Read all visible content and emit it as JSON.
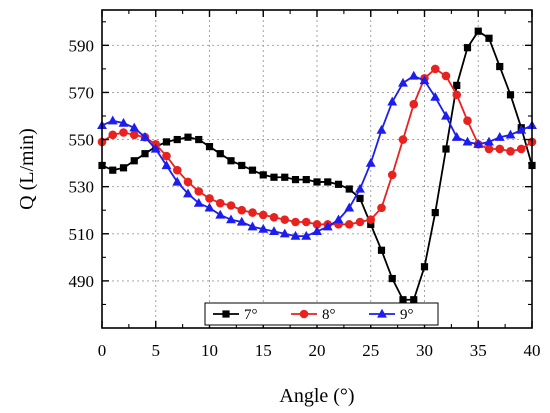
{
  "chart_data": {
    "type": "line",
    "xlabel": "Angle (°)",
    "ylabel": "Q (L/min)",
    "xlim": [
      0,
      40
    ],
    "ylim": [
      470,
      605
    ],
    "x_ticks": [
      0,
      5,
      10,
      15,
      20,
      25,
      30,
      35,
      40
    ],
    "y_ticks": [
      490,
      510,
      530,
      550,
      570,
      590
    ],
    "grid": true,
    "legend_position": "bottom-center",
    "x": [
      0,
      1,
      2,
      3,
      4,
      5,
      6,
      7,
      8,
      9,
      10,
      11,
      12,
      13,
      14,
      15,
      16,
      17,
      18,
      19,
      20,
      21,
      22,
      23,
      24,
      25,
      26,
      27,
      28,
      29,
      30,
      31,
      32,
      33,
      34,
      35,
      36,
      37,
      38,
      39,
      40
    ],
    "series": [
      {
        "name": "7°",
        "color": "#000000",
        "marker": "square",
        "values": [
          539,
          537,
          538,
          541,
          544,
          547,
          549,
          550,
          551,
          550,
          547,
          544,
          541,
          539,
          537,
          535,
          534,
          534,
          533,
          533,
          532,
          532,
          531,
          529,
          525,
          514,
          503,
          491,
          482,
          482,
          496,
          519,
          546,
          573,
          589,
          596,
          593,
          581,
          569,
          555,
          539
        ]
      },
      {
        "name": "8°",
        "color": "#e8231f",
        "marker": "circle",
        "values": [
          549,
          552,
          553,
          552,
          551,
          548,
          543,
          537,
          532,
          528,
          525,
          523,
          522,
          520,
          519,
          518,
          517,
          516,
          515,
          515,
          514,
          514,
          514,
          514,
          515,
          516,
          521,
          535,
          550,
          565,
          576,
          580,
          577,
          569,
          558,
          548,
          546,
          546,
          545,
          546,
          549
        ]
      },
      {
        "name": "9°",
        "color": "#1d1df0",
        "marker": "triangle",
        "values": [
          556,
          558,
          557,
          555,
          551,
          546,
          539,
          532,
          527,
          523,
          521,
          518,
          516,
          515,
          513,
          512,
          511,
          510,
          509,
          509,
          511,
          513,
          516,
          521,
          529,
          540,
          554,
          566,
          574,
          577,
          575,
          568,
          560,
          551,
          549,
          548,
          549,
          551,
          552,
          554,
          556
        ]
      }
    ]
  }
}
